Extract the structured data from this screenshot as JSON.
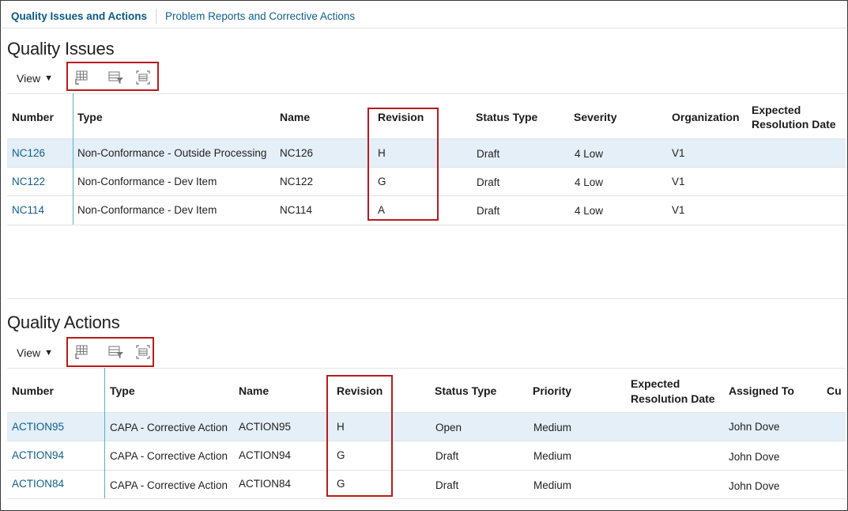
{
  "tabs": [
    {
      "label": "Quality Issues and Actions",
      "active": true
    },
    {
      "label": "Problem Reports and Corrective Actions",
      "active": false
    }
  ],
  "issues": {
    "title": "Quality Issues",
    "view_label": "View",
    "headers": [
      "Number",
      "Type",
      "Name",
      "Revision",
      "Status Type",
      "Severity",
      "Organization",
      "Expected",
      "Resolution Date"
    ],
    "rows": [
      [
        "NC126",
        "Non-Conformance - Outside Processing",
        "NC126",
        "H",
        "Draft",
        "4 Low",
        "V1"
      ],
      [
        "NC122",
        "Non-Conformance - Dev Item",
        "NC122",
        "G",
        "Draft",
        "4 Low",
        "V1"
      ],
      [
        "NC114",
        "Non-Conformance - Dev Item",
        "NC114",
        "A",
        "Draft",
        "4 Low",
        "V1"
      ]
    ]
  },
  "actions": {
    "title": "Quality Actions",
    "view_label": "View",
    "headers": [
      "Number",
      "Type",
      "Name",
      "Revision",
      "Status Type",
      "Priority",
      "Expected",
      "Resolution Date",
      "Assigned To",
      "Cu"
    ],
    "rows": [
      [
        "ACTION95",
        "CAPA - Corrective Action",
        "ACTION95",
        "H",
        "Open",
        "Medium",
        "John Dove"
      ],
      [
        "ACTION94",
        "CAPA - Corrective Action",
        "ACTION94",
        "G",
        "Draft",
        "Medium",
        "John Dove"
      ],
      [
        "ACTION84",
        "CAPA - Corrective Action",
        "ACTION84",
        "G",
        "Draft",
        "Medium",
        "John Dove"
      ]
    ]
  },
  "icons": [
    "columns-icon",
    "query-by-example-icon",
    "detach-icon"
  ],
  "colors": {
    "link": "#0f5f8e",
    "highlight": "#e4eff8",
    "callout": "#b71c1c",
    "frozen_divider": "#55b3c2"
  }
}
